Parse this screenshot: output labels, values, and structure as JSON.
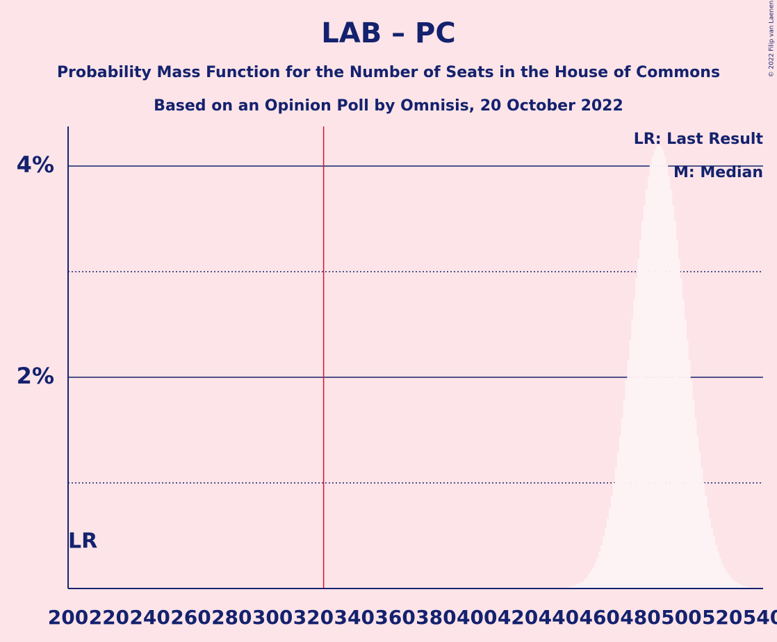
{
  "chart_data": {
    "type": "bar",
    "title": "LAB – PC",
    "subtitle": "Probability Mass Function for the Number of Seats in the House of Commons",
    "subtitle2": "Based on an Opinion Poll by Omnisis, 20 October 2022",
    "legend": [
      "LR: Last Result",
      "M: Median"
    ],
    "last_result_label": "LR",
    "last_result": 200,
    "majority": 325,
    "copyright": "© 2022 Filip van Laenen",
    "color": "#fdf3f5",
    "majority_color": "#e0102f",
    "xlim": [
      200,
      540
    ],
    "xticks": [
      200,
      220,
      240,
      260,
      280,
      300,
      320,
      340,
      360,
      380,
      400,
      420,
      440,
      460,
      480,
      500,
      520,
      540
    ],
    "ylim": [
      0,
      4.375
    ],
    "yticks": [
      {
        "value": 2,
        "label": "2%"
      },
      {
        "value": 4,
        "label": "4%"
      }
    ],
    "minor_yticks": [
      1,
      3
    ],
    "x": [
      445,
      446,
      447,
      448,
      449,
      450,
      451,
      452,
      453,
      454,
      455,
      456,
      457,
      458,
      459,
      460,
      461,
      462,
      463,
      464,
      465,
      466,
      467,
      468,
      469,
      470,
      471,
      472,
      473,
      474,
      475,
      476,
      477,
      478,
      479,
      480,
      481,
      482,
      483,
      484,
      485,
      486,
      487,
      488,
      489,
      490,
      491,
      492,
      493,
      494,
      495,
      496,
      497,
      498,
      499,
      500,
      501,
      502,
      503,
      504,
      505,
      506,
      507,
      508,
      509,
      510,
      511,
      512,
      513,
      514,
      515,
      516,
      517,
      518,
      519,
      520,
      521,
      522,
      523,
      524,
      525,
      526,
      527,
      528,
      529,
      530,
      531,
      532,
      533
    ],
    "values": [
      0.01,
      0.02,
      0.02,
      0.03,
      0.04,
      0.05,
      0.06,
      0.07,
      0.09,
      0.11,
      0.14,
      0.17,
      0.2,
      0.24,
      0.29,
      0.35,
      0.41,
      0.49,
      0.57,
      0.66,
      0.76,
      0.88,
      1.0,
      1.14,
      1.29,
      1.44,
      1.61,
      1.79,
      1.97,
      2.16,
      2.35,
      2.55,
      2.74,
      2.94,
      3.12,
      3.3,
      3.48,
      3.63,
      3.78,
      3.9,
      4.01,
      4.09,
      4.15,
      4.19,
      4.2,
      4.19,
      4.15,
      4.09,
      4.01,
      3.9,
      3.78,
      3.63,
      3.48,
      3.3,
      3.12,
      2.94,
      2.74,
      2.55,
      2.35,
      2.16,
      1.97,
      1.79,
      1.61,
      1.44,
      1.29,
      1.14,
      1.0,
      0.88,
      0.76,
      0.66,
      0.57,
      0.49,
      0.41,
      0.35,
      0.29,
      0.24,
      0.2,
      0.17,
      0.14,
      0.11,
      0.09,
      0.07,
      0.06,
      0.05,
      0.04,
      0.03,
      0.02,
      0.02,
      0.01
    ]
  }
}
